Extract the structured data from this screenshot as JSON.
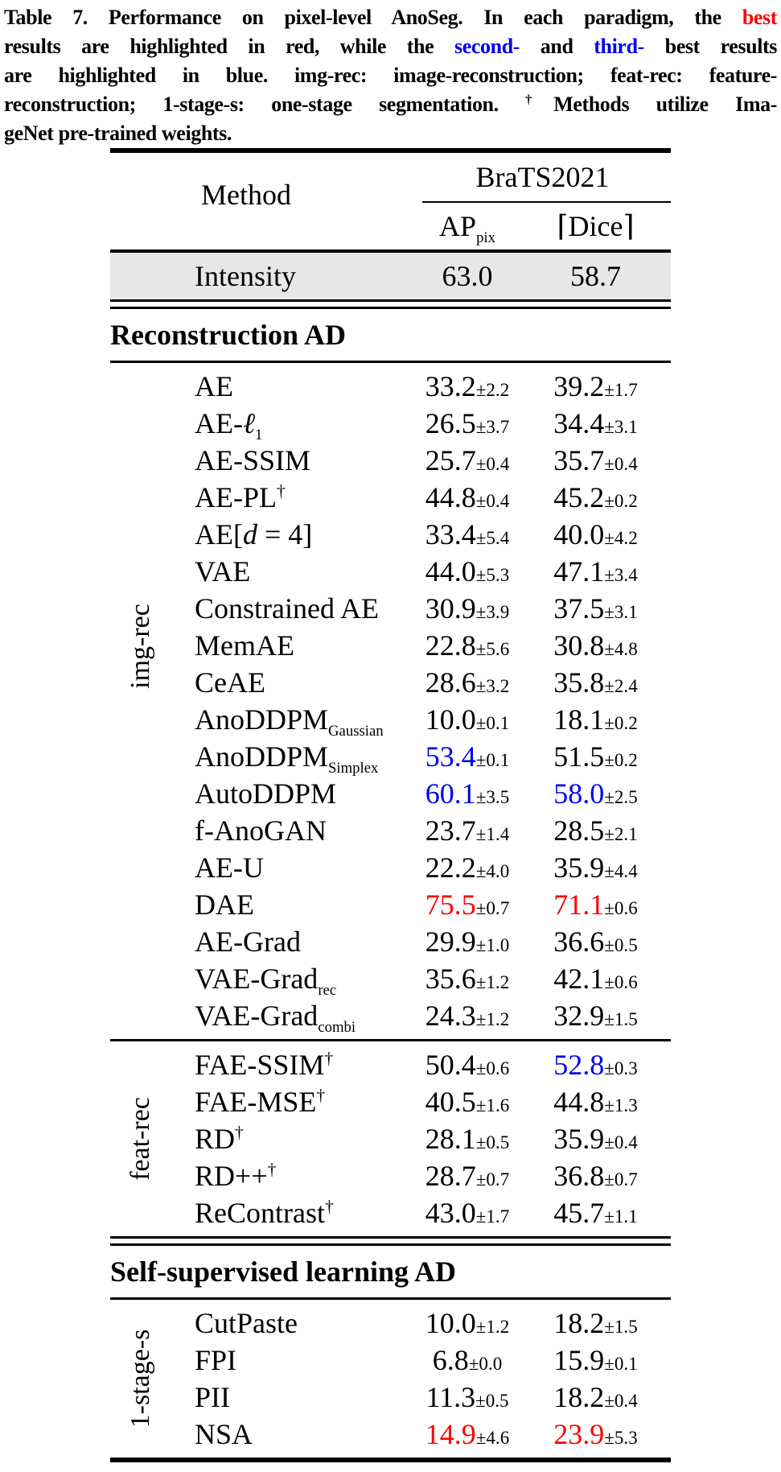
{
  "colors": {
    "red": "#fa0000",
    "blue": "#0000f0",
    "shade": "#e7e7e7"
  },
  "caption": {
    "lines": [
      [
        {
          "t": "Table 7. Performance on pixel-level AnoSeg.  In each paradigm, the "
        },
        {
          "t": "best",
          "c": "red"
        }
      ],
      [
        {
          "t": "results are highlighted in red, while the "
        },
        {
          "t": "second-",
          "c": "blue"
        },
        {
          "t": " and "
        },
        {
          "t": "third-",
          "c": "blue"
        },
        {
          "t": " best results"
        }
      ],
      [
        {
          "t": "are highlighted in blue. img-rec: image-reconstruction; feat-rec: feature-"
        }
      ],
      [
        {
          "t": "reconstruction; 1-stage-s: one-stage segmentation. "
        },
        {
          "t": "†",
          "sup": true
        },
        {
          "t": "Methods utilize Ima-"
        }
      ],
      [
        {
          "t": "geNet pre-trained weights."
        }
      ]
    ]
  },
  "table": {
    "header": {
      "method_label": "Method",
      "dataset_label": "BraTS2021",
      "col1_base": "AP",
      "col1_sub": "pix",
      "col2_label": "⌈Dice⌉"
    },
    "baseline_row": {
      "method": "Intensity",
      "ap": {
        "v": "63.0"
      },
      "dice": {
        "v": "58.7"
      }
    },
    "sections": [
      {
        "title": "Reconstruction AD",
        "groups": [
          {
            "label": "img-rec",
            "rows": [
              {
                "method": "AE",
                "ap": {
                  "v": "33.2",
                  "e": "2.2"
                },
                "dice": {
                  "v": "39.2",
                  "e": "1.7"
                }
              },
              {
                "method": "AE-*ℓ*_{1}",
                "ap": {
                  "v": "26.5",
                  "e": "3.7"
                },
                "dice": {
                  "v": "34.4",
                  "e": "3.1"
                }
              },
              {
                "method": "AE-SSIM",
                "ap": {
                  "v": "25.7",
                  "e": "0.4"
                },
                "dice": {
                  "v": "35.7",
                  "e": "0.4"
                }
              },
              {
                "method": "AE-PL^{†}",
                "ap": {
                  "v": "44.8",
                  "e": "0.4"
                },
                "dice": {
                  "v": "45.2",
                  "e": "0.2"
                }
              },
              {
                "method": "AE[*d* = 4]",
                "ap": {
                  "v": "33.4",
                  "e": "5.4"
                },
                "dice": {
                  "v": "40.0",
                  "e": "4.2"
                }
              },
              {
                "method": "VAE",
                "ap": {
                  "v": "44.0",
                  "e": "5.3"
                },
                "dice": {
                  "v": "47.1",
                  "e": "3.4"
                }
              },
              {
                "method": "Constrained AE",
                "ap": {
                  "v": "30.9",
                  "e": "3.9"
                },
                "dice": {
                  "v": "37.5",
                  "e": "3.1"
                }
              },
              {
                "method": "MemAE",
                "ap": {
                  "v": "22.8",
                  "e": "5.6"
                },
                "dice": {
                  "v": "30.8",
                  "e": "4.8"
                }
              },
              {
                "method": "CeAE",
                "ap": {
                  "v": "28.6",
                  "e": "3.2"
                },
                "dice": {
                  "v": "35.8",
                  "e": "2.4"
                }
              },
              {
                "method": "AnoDDPM_{Gaussian}",
                "ap": {
                  "v": "10.0",
                  "e": "0.1"
                },
                "dice": {
                  "v": "18.1",
                  "e": "0.2"
                }
              },
              {
                "method": "AnoDDPM_{Simplex}",
                "ap": {
                  "v": "53.4",
                  "e": "0.1",
                  "c": "blue"
                },
                "dice": {
                  "v": "51.5",
                  "e": "0.2"
                }
              },
              {
                "method": "AutoDDPM",
                "ap": {
                  "v": "60.1",
                  "e": "3.5",
                  "c": "blue"
                },
                "dice": {
                  "v": "58.0",
                  "e": "2.5",
                  "c": "blue"
                }
              },
              {
                "method": "f-AnoGAN",
                "ap": {
                  "v": "23.7",
                  "e": "1.4"
                },
                "dice": {
                  "v": "28.5",
                  "e": "2.1"
                }
              },
              {
                "method": "AE-U",
                "ap": {
                  "v": "22.2",
                  "e": "4.0"
                },
                "dice": {
                  "v": "35.9",
                  "e": "4.4"
                }
              },
              {
                "method": "DAE",
                "ap": {
                  "v": "75.5",
                  "e": "0.7",
                  "c": "red"
                },
                "dice": {
                  "v": "71.1",
                  "e": "0.6",
                  "c": "red"
                }
              },
              {
                "method": "AE-Grad",
                "ap": {
                  "v": "29.9",
                  "e": "1.0"
                },
                "dice": {
                  "v": "36.6",
                  "e": "0.5"
                }
              },
              {
                "method": "VAE-Grad_{rec}",
                "ap": {
                  "v": "35.6",
                  "e": "1.2"
                },
                "dice": {
                  "v": "42.1",
                  "e": "0.6"
                }
              },
              {
                "method": "VAE-Grad_{combi}",
                "ap": {
                  "v": "24.3",
                  "e": "1.2"
                },
                "dice": {
                  "v": "32.9",
                  "e": "1.5"
                }
              }
            ]
          },
          {
            "label": "feat-rec",
            "rows": [
              {
                "method": "FAE-SSIM^{†}",
                "ap": {
                  "v": "50.4",
                  "e": "0.6"
                },
                "dice": {
                  "v": "52.8",
                  "e": "0.3",
                  "c": "blue"
                }
              },
              {
                "method": "FAE-MSE^{†}",
                "ap": {
                  "v": "40.5",
                  "e": "1.6"
                },
                "dice": {
                  "v": "44.8",
                  "e": "1.3"
                }
              },
              {
                "method": "RD^{†}",
                "ap": {
                  "v": "28.1",
                  "e": "0.5"
                },
                "dice": {
                  "v": "35.9",
                  "e": "0.4"
                }
              },
              {
                "method": "RD++^{†}",
                "ap": {
                  "v": "28.7",
                  "e": "0.7"
                },
                "dice": {
                  "v": "36.8",
                  "e": "0.7"
                }
              },
              {
                "method": "ReContrast^{†}",
                "ap": {
                  "v": "43.0",
                  "e": "1.7"
                },
                "dice": {
                  "v": "45.7",
                  "e": "1.1"
                }
              }
            ]
          }
        ]
      },
      {
        "title": "Self-supervised learning AD",
        "groups": [
          {
            "label": "1-stage-s",
            "rows": [
              {
                "method": "CutPaste",
                "ap": {
                  "v": "10.0",
                  "e": "1.2"
                },
                "dice": {
                  "v": "18.2",
                  "e": "1.5"
                }
              },
              {
                "method": "FPI",
                "ap": {
                  "v": "6.8",
                  "e": "0.0"
                },
                "dice": {
                  "v": "15.9",
                  "e": "0.1"
                }
              },
              {
                "method": "PII",
                "ap": {
                  "v": "11.3",
                  "e": "0.5"
                },
                "dice": {
                  "v": "18.2",
                  "e": "0.4"
                }
              },
              {
                "method": "NSA",
                "ap": {
                  "v": "14.9",
                  "e": "4.6",
                  "c": "red"
                },
                "dice": {
                  "v": "23.9",
                  "e": "5.3",
                  "c": "red"
                }
              }
            ]
          }
        ]
      }
    ]
  }
}
